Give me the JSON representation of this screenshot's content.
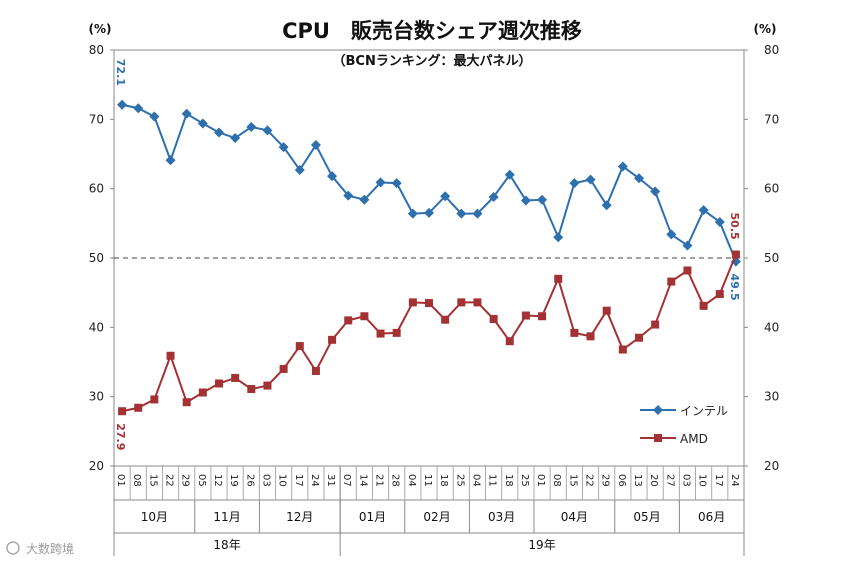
{
  "chart_data": {
    "type": "line",
    "title": "CPU　販売台数シェア週次推移",
    "subtitle": "（BCNランキング：最大パネル）",
    "y_unit_left": "(%)",
    "y_unit_right": "(%)",
    "ylim": [
      20,
      80
    ],
    "yticks": [
      20,
      30,
      40,
      50,
      60,
      70,
      80
    ],
    "reference_line": 50,
    "x": [
      "01",
      "08",
      "15",
      "22",
      "29",
      "05",
      "12",
      "19",
      "26",
      "03",
      "10",
      "17",
      "24",
      "31",
      "07",
      "14",
      "21",
      "28",
      "04",
      "11",
      "18",
      "25",
      "04",
      "11",
      "18",
      "25",
      "01",
      "08",
      "15",
      "22",
      "29",
      "06",
      "13",
      "20",
      "27",
      "03",
      "10",
      "17",
      "24"
    ],
    "months": [
      {
        "label": "10月",
        "count": 5
      },
      {
        "label": "11月",
        "count": 4
      },
      {
        "label": "12月",
        "count": 5
      },
      {
        "label": "01月",
        "count": 4
      },
      {
        "label": "02月",
        "count": 4
      },
      {
        "label": "03月",
        "count": 4
      },
      {
        "label": "04月",
        "count": 5
      },
      {
        "label": "05月",
        "count": 4
      },
      {
        "label": "06月",
        "count": 4
      }
    ],
    "years": [
      {
        "label": "18年",
        "count": 14
      },
      {
        "label": "19年",
        "count": 25
      }
    ],
    "series": [
      {
        "name": "インテル",
        "color": "#2e6fae",
        "marker": "diamond",
        "values": [
          72.1,
          71.6,
          70.4,
          64.1,
          70.8,
          69.4,
          68.1,
          67.3,
          68.9,
          68.4,
          66.0,
          62.7,
          66.3,
          61.8,
          59.0,
          58.4,
          60.9,
          60.8,
          56.4,
          56.5,
          58.9,
          56.4,
          56.4,
          58.8,
          62.0,
          58.3,
          58.4,
          53.0,
          60.8,
          61.3,
          57.6,
          63.2,
          61.5,
          59.6,
          53.4,
          51.8,
          56.9,
          55.2,
          49.5
        ]
      },
      {
        "name": "AMD",
        "color": "#a33234",
        "marker": "square",
        "values": [
          27.9,
          28.4,
          29.6,
          35.9,
          29.2,
          30.6,
          31.9,
          32.7,
          31.1,
          31.6,
          34.0,
          37.3,
          33.7,
          38.2,
          41.0,
          41.6,
          39.1,
          39.2,
          43.6,
          43.5,
          41.1,
          43.6,
          43.6,
          41.2,
          38.0,
          41.7,
          41.6,
          47.0,
          39.2,
          38.7,
          42.4,
          36.8,
          38.5,
          40.4,
          46.6,
          48.2,
          43.1,
          44.8,
          50.5
        ]
      }
    ],
    "data_labels": {
      "intel_first": "72.1",
      "amd_first": "27.9",
      "amd_last": "50.5",
      "intel_last": "49.5"
    }
  },
  "watermark": "大数跨境"
}
